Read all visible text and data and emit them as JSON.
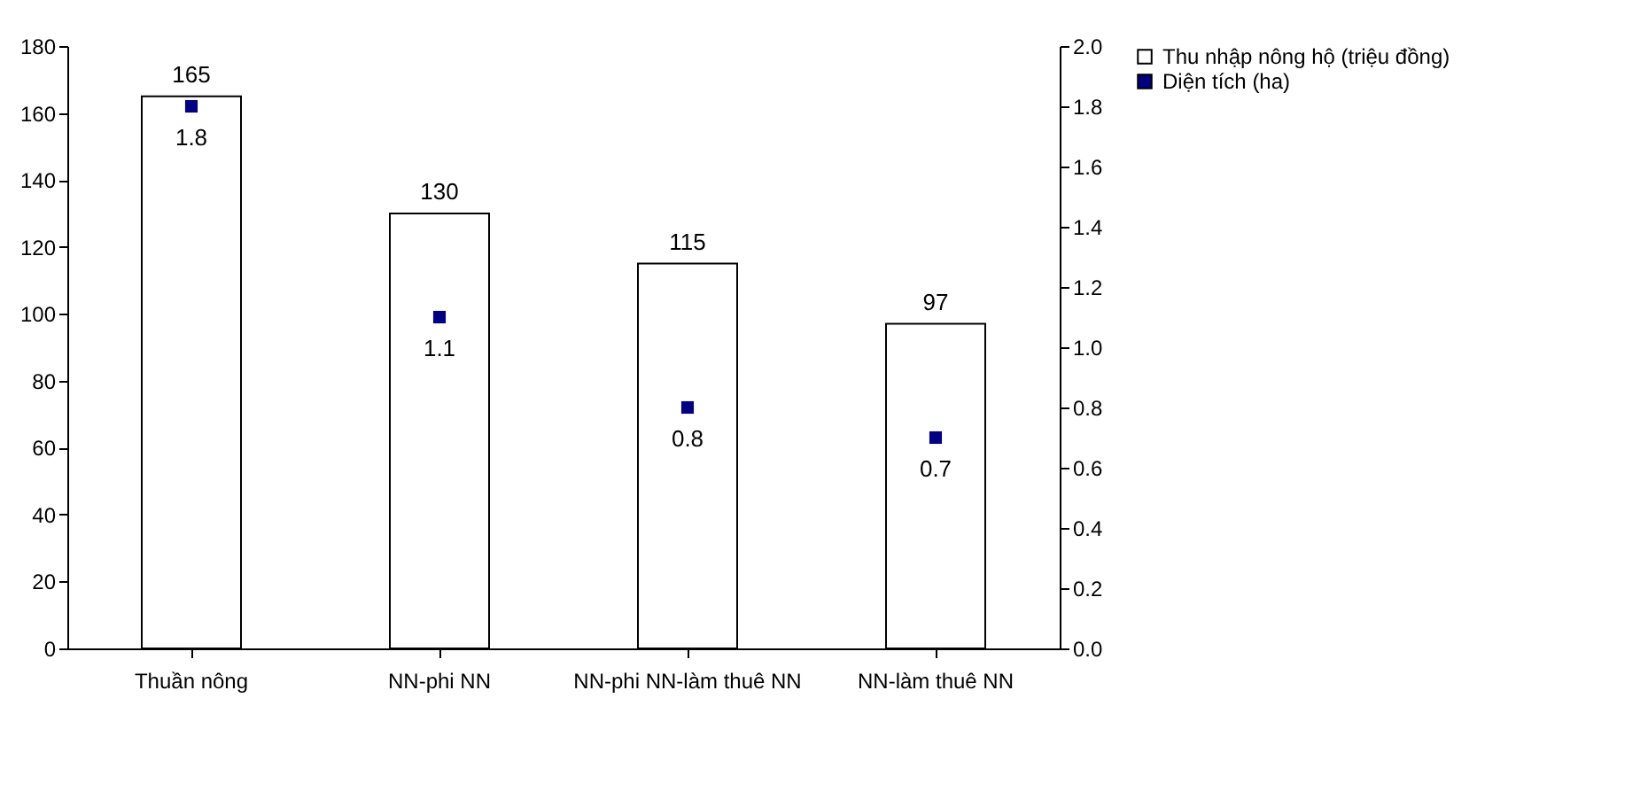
{
  "chart_data": {
    "type": "bar",
    "categories": [
      "Thuần nông",
      "NN-phi NN",
      "NN-phi NN-làm thuê NN",
      "NN-làm thuê NN"
    ],
    "series": [
      {
        "name": "Thu nhập nông hộ (triệu đồng)",
        "type": "bar",
        "color": "#ffffff",
        "values": [
          165,
          130,
          115,
          97
        ]
      },
      {
        "name": "Diện tích (ha)",
        "type": "scatter",
        "axis": "y2",
        "color": "#000080",
        "values": [
          1.8,
          1.1,
          0.8,
          0.7
        ]
      }
    ],
    "ylim": [
      0,
      180
    ],
    "yticks": [
      0,
      20,
      40,
      60,
      80,
      100,
      120,
      140,
      160,
      180
    ],
    "y2lim": [
      0,
      2
    ],
    "y2ticks": [
      {
        "value": 0,
        "label": "0.0"
      },
      {
        "value": 0.2,
        "label": "0.2"
      },
      {
        "value": 0.4,
        "label": "0.4"
      },
      {
        "value": 0.6,
        "label": "0.6"
      },
      {
        "value": 0.8,
        "label": "0.8"
      },
      {
        "value": 1,
        "label": "1.0"
      },
      {
        "value": 1.2,
        "label": "1.2"
      },
      {
        "value": 1.4,
        "label": "1.4"
      },
      {
        "value": 1.6,
        "label": "1.6"
      },
      {
        "value": 1.8,
        "label": "1.8"
      },
      {
        "value": 2,
        "label": "2.0"
      }
    ],
    "data_labels": true,
    "marker": "square",
    "legend": "right",
    "grid": false
  }
}
